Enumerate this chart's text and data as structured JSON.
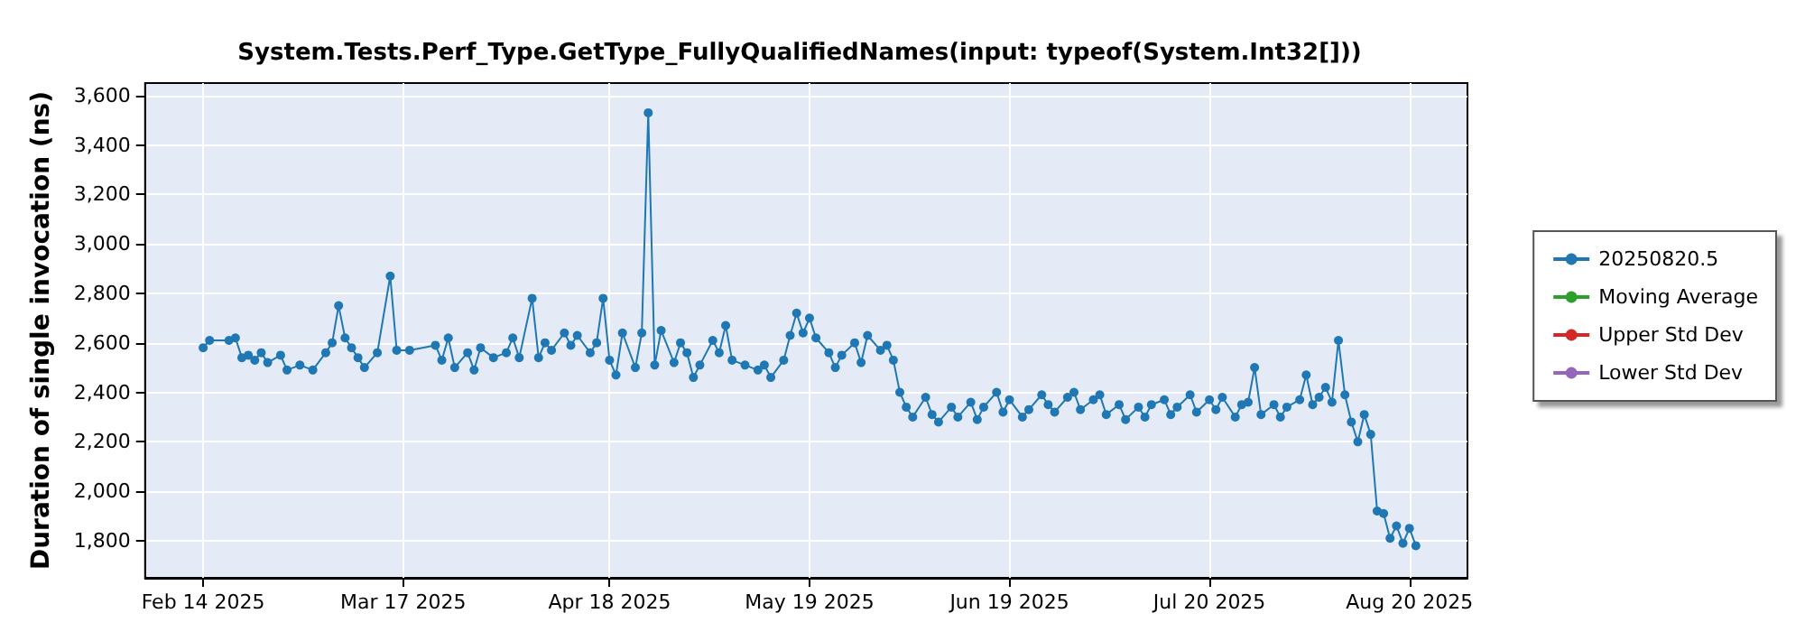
{
  "chart_data": {
    "type": "line",
    "title": "System.Tests.Perf_Type.GetType_FullyQualifiedNames(input: typeof(System.Int32[]))",
    "ylabel": "Duration of single invocation (ns)",
    "x": [
      "2025-02-14",
      "2025-02-15",
      "2025-02-18",
      "2025-02-19",
      "2025-02-20",
      "2025-02-21",
      "2025-02-22",
      "2025-02-23",
      "2025-02-24",
      "2025-02-26",
      "2025-02-27",
      "2025-03-01",
      "2025-03-03",
      "2025-03-05",
      "2025-03-06",
      "2025-03-07",
      "2025-03-08",
      "2025-03-09",
      "2025-03-10",
      "2025-03-11",
      "2025-03-13",
      "2025-03-15",
      "2025-03-16",
      "2025-03-18",
      "2025-03-22",
      "2025-03-23",
      "2025-03-24",
      "2025-03-25",
      "2025-03-27",
      "2025-03-28",
      "2025-03-29",
      "2025-03-31",
      "2025-04-02",
      "2025-04-03",
      "2025-04-04",
      "2025-04-06",
      "2025-04-07",
      "2025-04-08",
      "2025-04-09",
      "2025-04-11",
      "2025-04-12",
      "2025-04-13",
      "2025-04-15",
      "2025-04-16",
      "2025-04-17",
      "2025-04-18",
      "2025-04-19",
      "2025-04-20",
      "2025-04-22",
      "2025-04-23",
      "2025-04-24",
      "2025-04-25",
      "2025-04-26",
      "2025-04-28",
      "2025-04-29",
      "2025-04-30",
      "2025-05-01",
      "2025-05-02",
      "2025-05-04",
      "2025-05-05",
      "2025-05-06",
      "2025-05-07",
      "2025-05-09",
      "2025-05-11",
      "2025-05-12",
      "2025-05-13",
      "2025-05-15",
      "2025-05-16",
      "2025-05-17",
      "2025-05-18",
      "2025-05-19",
      "2025-05-20",
      "2025-05-22",
      "2025-05-23",
      "2025-05-24",
      "2025-05-26",
      "2025-05-27",
      "2025-05-28",
      "2025-05-30",
      "2025-05-31",
      "2025-06-01",
      "2025-06-02",
      "2025-06-03",
      "2025-06-04",
      "2025-06-06",
      "2025-06-07",
      "2025-06-08",
      "2025-06-10",
      "2025-06-11",
      "2025-06-13",
      "2025-06-14",
      "2025-06-15",
      "2025-06-17",
      "2025-06-18",
      "2025-06-19",
      "2025-06-21",
      "2025-06-22",
      "2025-06-24",
      "2025-06-25",
      "2025-06-26",
      "2025-06-28",
      "2025-06-29",
      "2025-06-30",
      "2025-07-02",
      "2025-07-03",
      "2025-07-04",
      "2025-07-06",
      "2025-07-07",
      "2025-07-09",
      "2025-07-10",
      "2025-07-11",
      "2025-07-13",
      "2025-07-14",
      "2025-07-15",
      "2025-07-17",
      "2025-07-18",
      "2025-07-20",
      "2025-07-21",
      "2025-07-22",
      "2025-07-24",
      "2025-07-25",
      "2025-07-26",
      "2025-07-27",
      "2025-07-28",
      "2025-07-30",
      "2025-07-31",
      "2025-08-01",
      "2025-08-03",
      "2025-08-04",
      "2025-08-05",
      "2025-08-06",
      "2025-08-07",
      "2025-08-08",
      "2025-08-09",
      "2025-08-10",
      "2025-08-11",
      "2025-08-12",
      "2025-08-13",
      "2025-08-14",
      "2025-08-15",
      "2025-08-16",
      "2025-08-17",
      "2025-08-18",
      "2025-08-19",
      "2025-08-20",
      "2025-08-21"
    ],
    "series": [
      {
        "name": "20250820.5",
        "color": "#1f77b4",
        "values": [
          2580,
          2610,
          2610,
          2620,
          2540,
          2550,
          2530,
          2560,
          2520,
          2550,
          2490,
          2510,
          2490,
          2560,
          2600,
          2750,
          2620,
          2580,
          2540,
          2500,
          2560,
          2870,
          2570,
          2570,
          2590,
          2530,
          2620,
          2500,
          2560,
          2490,
          2580,
          2540,
          2560,
          2620,
          2540,
          2780,
          2540,
          2600,
          2570,
          2640,
          2590,
          2630,
          2560,
          2600,
          2780,
          2530,
          2470,
          2640,
          2500,
          2640,
          3530,
          2510,
          2650,
          2520,
          2600,
          2560,
          2460,
          2510,
          2610,
          2560,
          2670,
          2530,
          2510,
          2490,
          2510,
          2460,
          2530,
          2630,
          2720,
          2640,
          2700,
          2620,
          2560,
          2500,
          2550,
          2600,
          2520,
          2630,
          2570,
          2590,
          2530,
          2400,
          2340,
          2300,
          2380,
          2310,
          2280,
          2340,
          2300,
          2360,
          2290,
          2340,
          2400,
          2320,
          2370,
          2300,
          2330,
          2390,
          2350,
          2320,
          2380,
          2400,
          2330,
          2370,
          2390,
          2310,
          2350,
          2290,
          2340,
          2300,
          2350,
          2370,
          2310,
          2340,
          2390,
          2320,
          2370,
          2330,
          2380,
          2300,
          2350,
          2360,
          2500,
          2310,
          2350,
          2300,
          2340,
          2370,
          2470,
          2350,
          2380,
          2420,
          2360,
          2610,
          2390,
          2280,
          2200,
          2310,
          2230,
          1920,
          1910,
          1810,
          1860,
          1790,
          1850,
          1780
        ]
      },
      {
        "name": "Moving Average",
        "color": "#2ca02c",
        "values": [
          null,
          null,
          null,
          null,
          null,
          null,
          null,
          null,
          null,
          null,
          null,
          null,
          null,
          null,
          null,
          null,
          null,
          null,
          null,
          null,
          null,
          null,
          null,
          null,
          null,
          null,
          null,
          null,
          null,
          null,
          null,
          null,
          null,
          null,
          null,
          null,
          null,
          null,
          null,
          null,
          null,
          null,
          null,
          null,
          null,
          null,
          null,
          null,
          null,
          null,
          null,
          null,
          null,
          null,
          null,
          null,
          null,
          null,
          null,
          null,
          null,
          null,
          null,
          null,
          null,
          null,
          null,
          null,
          null,
          null,
          null,
          null,
          null,
          null,
          null,
          null,
          null,
          null,
          null,
          null,
          null,
          null,
          null,
          null,
          null,
          null,
          null,
          null,
          null,
          null,
          null,
          null,
          null,
          null,
          null,
          null,
          null,
          null,
          null,
          null,
          null,
          null,
          null,
          null,
          null,
          null,
          null,
          null,
          null,
          null,
          null,
          null,
          null,
          null,
          null,
          null,
          null,
          null,
          null,
          null,
          null,
          null,
          null,
          null,
          null,
          null,
          null,
          null,
          null,
          null,
          null,
          null,
          null,
          null,
          null,
          null,
          null,
          null,
          null,
          null,
          null,
          null,
          null,
          null,
          null,
          null
        ]
      },
      {
        "name": "Upper Std Dev",
        "color": "#d62728",
        "values": [
          null,
          null,
          null,
          null,
          null,
          null,
          null,
          null,
          null,
          null,
          null,
          null,
          null,
          null,
          null,
          null,
          null,
          null,
          null,
          null,
          null,
          null,
          null,
          null,
          null,
          null,
          null,
          null,
          null,
          null,
          null,
          null,
          null,
          null,
          null,
          null,
          null,
          null,
          null,
          null,
          null,
          null,
          null,
          null,
          null,
          null,
          null,
          null,
          null,
          null,
          null,
          null,
          null,
          null,
          null,
          null,
          null,
          null,
          null,
          null,
          null,
          null,
          null,
          null,
          null,
          null,
          null,
          null,
          null,
          null,
          null,
          null,
          null,
          null,
          null,
          null,
          null,
          null,
          null,
          null,
          null,
          null,
          null,
          null,
          null,
          null,
          null,
          null,
          null,
          null,
          null,
          null,
          null,
          null,
          null,
          null,
          null,
          null,
          null,
          null,
          null,
          null,
          null,
          null,
          null,
          null,
          null,
          null,
          null,
          null,
          null,
          null,
          null,
          null,
          null,
          null,
          null,
          null,
          null,
          null,
          null,
          null,
          null,
          null,
          null,
          null,
          null,
          null,
          null,
          null,
          null,
          null,
          null,
          null,
          null,
          null,
          null,
          null,
          null,
          null,
          null,
          null,
          null,
          null,
          null,
          null
        ]
      },
      {
        "name": "Lower Std Dev",
        "color": "#9467bd",
        "values": [
          null,
          null,
          null,
          null,
          null,
          null,
          null,
          null,
          null,
          null,
          null,
          null,
          null,
          null,
          null,
          null,
          null,
          null,
          null,
          null,
          null,
          null,
          null,
          null,
          null,
          null,
          null,
          null,
          null,
          null,
          null,
          null,
          null,
          null,
          null,
          null,
          null,
          null,
          null,
          null,
          null,
          null,
          null,
          null,
          null,
          null,
          null,
          null,
          null,
          null,
          null,
          null,
          null,
          null,
          null,
          null,
          null,
          null,
          null,
          null,
          null,
          null,
          null,
          null,
          null,
          null,
          null,
          null,
          null,
          null,
          null,
          null,
          null,
          null,
          null,
          null,
          null,
          null,
          null,
          null,
          null,
          null,
          null,
          null,
          null,
          null,
          null,
          null,
          null,
          null,
          null,
          null,
          null,
          null,
          null,
          null,
          null,
          null,
          null,
          null,
          null,
          null,
          null,
          null,
          null,
          null,
          null,
          null,
          null,
          null,
          null,
          null,
          null,
          null,
          null,
          null,
          null,
          null,
          null,
          null,
          null,
          null,
          null,
          null,
          null,
          null,
          null,
          null,
          null,
          null,
          null,
          null,
          null,
          null,
          null,
          null,
          null,
          null,
          null,
          null,
          null,
          null,
          null,
          null,
          null,
          null
        ]
      }
    ],
    "xlim": [
      "2025-02-05",
      "2025-08-29"
    ],
    "xticks": [
      {
        "value": "2025-02-14",
        "label": "Feb 14 2025"
      },
      {
        "value": "2025-03-17",
        "label": "Mar 17 2025"
      },
      {
        "value": "2025-04-18",
        "label": "Apr 18 2025"
      },
      {
        "value": "2025-05-19",
        "label": "May 19 2025"
      },
      {
        "value": "2025-06-19",
        "label": "Jun 19 2025"
      },
      {
        "value": "2025-07-20",
        "label": "Jul 20 2025"
      },
      {
        "value": "2025-08-20",
        "label": "Aug 20 2025"
      }
    ],
    "ylim": [
      1650,
      3650
    ],
    "yticks": [
      {
        "value": 1800,
        "label": "1,800"
      },
      {
        "value": 2000,
        "label": "2,000"
      },
      {
        "value": 2200,
        "label": "2,200"
      },
      {
        "value": 2400,
        "label": "2,400"
      },
      {
        "value": 2600,
        "label": "2,600"
      },
      {
        "value": 2800,
        "label": "2,800"
      },
      {
        "value": 3000,
        "label": "3,000"
      },
      {
        "value": 3200,
        "label": "3,200"
      },
      {
        "value": 3400,
        "label": "3,400"
      },
      {
        "value": 3600,
        "label": "3,600"
      }
    ],
    "grid": true,
    "legend": "right",
    "marker": "circle",
    "line_style": "solid"
  }
}
